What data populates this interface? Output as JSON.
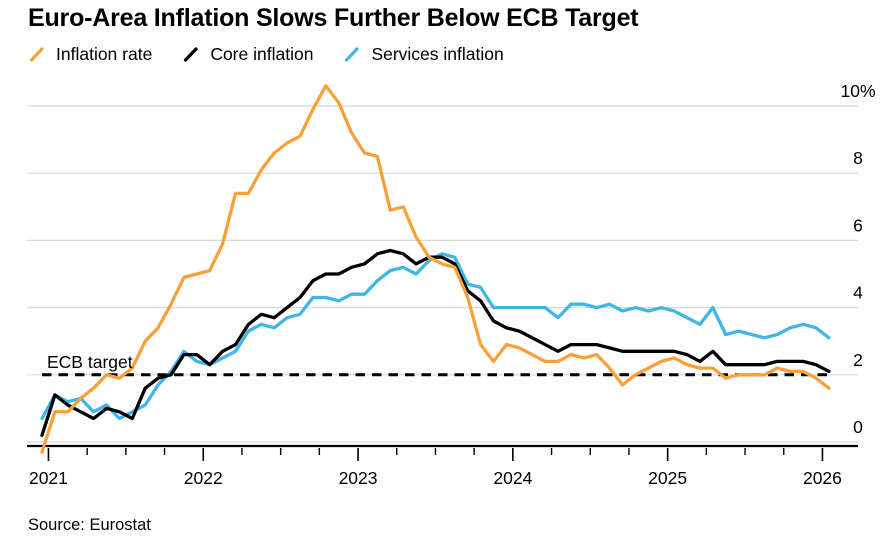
{
  "chart_data": {
    "type": "line",
    "title": "Euro-Area Inflation Slows Further Below ECB Target",
    "source": "Source: Eurostat",
    "x_start": "2020-12",
    "x_end": "2026-01",
    "x_frequency": "monthly",
    "x_tick_years": [
      "2021",
      "2022",
      "2023",
      "2024",
      "2025",
      "2026"
    ],
    "y_ticks": [
      0,
      2,
      4,
      6,
      8,
      10
    ],
    "y_tick_labels": [
      "0",
      "2",
      "4",
      "6",
      "8",
      "10%"
    ],
    "ylim": [
      -0.5,
      10.8
    ],
    "grid": true,
    "legend_position": "top-left",
    "background_color": "#ffffff",
    "gridline_color": "#d8d8d8",
    "target_line": {
      "label": "ECB target",
      "value": 2,
      "style": "dashed",
      "color": "#000000"
    },
    "series": [
      {
        "name": "Inflation rate",
        "color": "#F8A13B",
        "values": [
          -0.3,
          0.9,
          0.9,
          1.3,
          1.6,
          2.0,
          1.9,
          2.2,
          3.0,
          3.4,
          4.1,
          4.9,
          5.0,
          5.1,
          5.9,
          7.4,
          7.4,
          8.1,
          8.6,
          8.9,
          9.1,
          9.9,
          10.6,
          10.1,
          9.2,
          8.6,
          8.5,
          6.9,
          7.0,
          6.1,
          5.5,
          5.3,
          5.2,
          4.3,
          2.9,
          2.4,
          2.9,
          2.8,
          2.6,
          2.4,
          2.4,
          2.6,
          2.5,
          2.6,
          2.2,
          1.7,
          2.0,
          2.2,
          2.4,
          2.5,
          2.3,
          2.2,
          2.2,
          1.9,
          2.0,
          2.0,
          2.0,
          2.2,
          2.1,
          2.1,
          1.9,
          1.6
        ]
      },
      {
        "name": "Core inflation",
        "color": "#000000",
        "values": [
          0.2,
          1.4,
          1.1,
          0.9,
          0.7,
          1.0,
          0.9,
          0.7,
          1.6,
          1.9,
          2.0,
          2.6,
          2.6,
          2.3,
          2.7,
          2.9,
          3.5,
          3.8,
          3.7,
          4.0,
          4.3,
          4.8,
          5.0,
          5.0,
          5.2,
          5.3,
          5.6,
          5.7,
          5.6,
          5.3,
          5.5,
          5.5,
          5.3,
          4.5,
          4.2,
          3.6,
          3.4,
          3.3,
          3.1,
          2.9,
          2.7,
          2.9,
          2.9,
          2.9,
          2.8,
          2.7,
          2.7,
          2.7,
          2.7,
          2.7,
          2.6,
          2.4,
          2.7,
          2.3,
          2.3,
          2.3,
          2.3,
          2.4,
          2.4,
          2.4,
          2.3,
          2.1
        ]
      },
      {
        "name": "Services inflation",
        "color": "#41B6E6",
        "values": [
          0.7,
          1.4,
          1.2,
          1.3,
          0.9,
          1.1,
          0.7,
          0.9,
          1.1,
          1.7,
          2.1,
          2.7,
          2.4,
          2.3,
          2.5,
          2.7,
          3.3,
          3.5,
          3.4,
          3.7,
          3.8,
          4.3,
          4.3,
          4.2,
          4.4,
          4.4,
          4.8,
          5.1,
          5.2,
          5.0,
          5.4,
          5.6,
          5.5,
          4.7,
          4.6,
          4.0,
          4.0,
          4.0,
          4.0,
          4.0,
          3.7,
          4.1,
          4.1,
          4.0,
          4.1,
          3.9,
          4.0,
          3.9,
          4.0,
          3.9,
          3.7,
          3.5,
          4.0,
          3.2,
          3.3,
          3.2,
          3.1,
          3.2,
          3.4,
          3.5,
          3.4,
          3.1
        ]
      }
    ]
  }
}
